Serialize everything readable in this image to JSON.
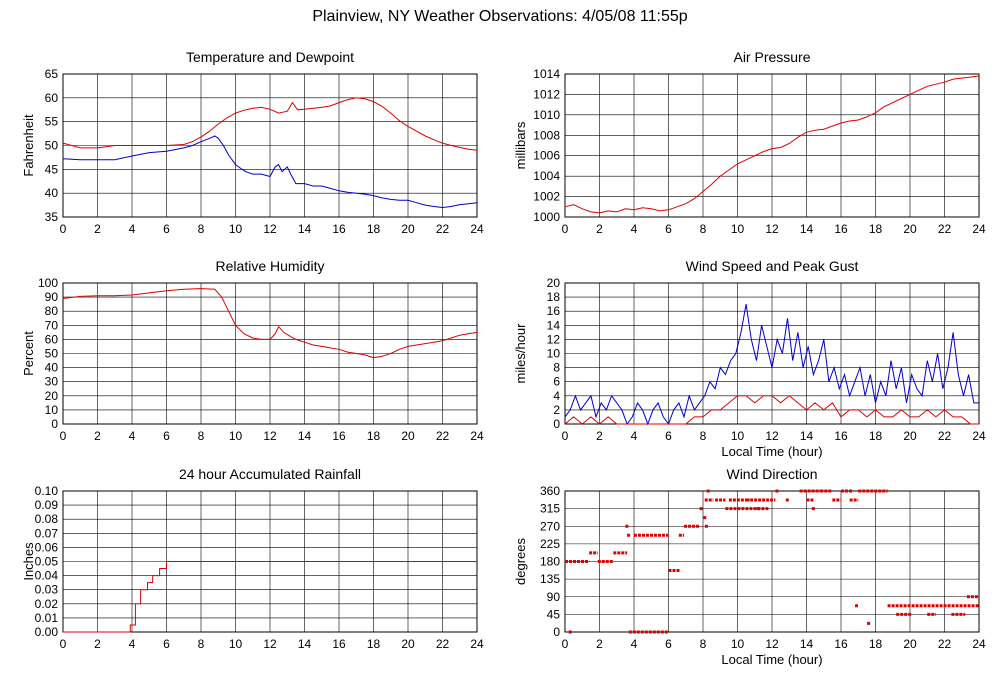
{
  "page": {
    "title": "Plainview, NY Weather Observations: 4/05/08 11:55p"
  },
  "colors": {
    "temperature": "#dd0000",
    "dewpoint": "#0000cc",
    "grid": "#000000"
  },
  "chart_data": [
    {
      "id": "temp",
      "type": "line",
      "title": "Temperature and Dewpoint",
      "xlabel": "",
      "ylabel": "Fahrenheit",
      "xlim": [
        0,
        24
      ],
      "ylim": [
        35,
        65
      ],
      "xticks": [
        0,
        2,
        4,
        6,
        8,
        10,
        12,
        14,
        16,
        18,
        20,
        22,
        24
      ],
      "yticks": [
        35,
        40,
        45,
        50,
        55,
        60,
        65
      ],
      "grid": true,
      "series": [
        {
          "color": "#dd0000",
          "x": [
            0,
            1,
            2,
            3,
            4,
            5,
            6,
            7,
            7.5,
            8,
            8.5,
            9,
            9.5,
            10,
            10.5,
            11,
            11.5,
            12,
            12.5,
            13,
            13.3,
            13.6,
            14,
            14.5,
            15,
            15.5,
            16,
            16.5,
            17,
            17.5,
            18,
            18.5,
            19,
            19.5,
            20,
            20.5,
            21,
            21.5,
            22,
            22.5,
            23,
            23.5,
            24
          ],
          "y": [
            50.5,
            49.5,
            49.5,
            50,
            50,
            50,
            50,
            50.2,
            50.8,
            51.8,
            53,
            54.5,
            55.8,
            56.8,
            57.4,
            57.8,
            58,
            57.6,
            56.8,
            57.2,
            59,
            57.5,
            57.6,
            57.8,
            58,
            58.3,
            59,
            59.6,
            60,
            59.8,
            59.2,
            58.2,
            56.8,
            55.2,
            54,
            53,
            52,
            51.2,
            50.5,
            50,
            49.6,
            49.2,
            49
          ]
        },
        {
          "color": "#0000cc",
          "x": [
            0,
            1,
            2,
            3,
            4,
            5,
            6,
            7,
            7.5,
            8,
            8.5,
            8.8,
            9,
            9.3,
            9.6,
            10,
            10.3,
            10.6,
            11,
            11.5,
            12,
            12.3,
            12.5,
            12.7,
            13,
            13.2,
            13.5,
            14,
            14.5,
            15,
            15.5,
            16,
            16.5,
            17,
            17.5,
            18,
            18.5,
            19,
            19.5,
            20,
            20.5,
            21,
            21.5,
            22,
            22.5,
            23,
            23.5,
            24
          ],
          "y": [
            47.2,
            47,
            47,
            47,
            47.8,
            48.5,
            48.8,
            49.5,
            50,
            50.8,
            51.5,
            52,
            51.5,
            50,
            48,
            46,
            45.2,
            44.5,
            44,
            44,
            43.5,
            45.5,
            46,
            44.5,
            45.5,
            44,
            42,
            42,
            41.5,
            41.5,
            41,
            40.5,
            40.2,
            40,
            39.8,
            39.5,
            39,
            38.7,
            38.5,
            38.5,
            38,
            37.5,
            37.2,
            37,
            37.2,
            37.6,
            37.8,
            38
          ]
        }
      ]
    },
    {
      "id": "pressure",
      "type": "line",
      "title": "Air Pressure",
      "xlabel": "",
      "ylabel": "millibars",
      "xlim": [
        0,
        24
      ],
      "ylim": [
        1000,
        1014
      ],
      "xticks": [
        0,
        2,
        4,
        6,
        8,
        10,
        12,
        14,
        16,
        18,
        20,
        22,
        24
      ],
      "yticks": [
        1000,
        1002,
        1004,
        1006,
        1008,
        1010,
        1012,
        1014
      ],
      "grid": true,
      "series": [
        {
          "color": "#dd0000",
          "x": [
            0,
            0.5,
            1,
            1.5,
            2,
            2.5,
            3,
            3.5,
            4,
            4.5,
            5,
            5.5,
            6,
            6.5,
            7,
            7.5,
            8,
            8.5,
            9,
            9.5,
            10,
            10.5,
            11,
            11.5,
            12,
            12.5,
            13,
            13.5,
            14,
            14.5,
            15,
            15.5,
            16,
            16.5,
            17,
            17.5,
            18,
            18.5,
            19,
            19.5,
            20,
            20.5,
            21,
            21.5,
            22,
            22.5,
            23,
            23.5,
            24
          ],
          "y": [
            1001,
            1001.2,
            1000.8,
            1000.5,
            1000.4,
            1000.6,
            1000.5,
            1000.8,
            1000.7,
            1000.9,
            1000.8,
            1000.6,
            1000.7,
            1001,
            1001.3,
            1001.8,
            1002.5,
            1003.2,
            1004,
            1004.6,
            1005.2,
            1005.6,
            1006,
            1006.4,
            1006.7,
            1006.8,
            1007.2,
            1007.8,
            1008.3,
            1008.5,
            1008.6,
            1008.9,
            1009.2,
            1009.4,
            1009.5,
            1009.8,
            1010.2,
            1010.8,
            1011.2,
            1011.6,
            1012,
            1012.4,
            1012.8,
            1013,
            1013.2,
            1013.5,
            1013.6,
            1013.7,
            1013.8
          ]
        }
      ]
    },
    {
      "id": "humidity",
      "type": "line",
      "title": "Relative Humidity",
      "xlabel": "",
      "ylabel": "Percent",
      "xlim": [
        0,
        24
      ],
      "ylim": [
        0,
        100
      ],
      "xticks": [
        0,
        2,
        4,
        6,
        8,
        10,
        12,
        14,
        16,
        18,
        20,
        22,
        24
      ],
      "yticks": [
        0,
        10,
        20,
        30,
        40,
        50,
        60,
        70,
        80,
        90,
        100
      ],
      "grid": true,
      "series": [
        {
          "color": "#dd0000",
          "x": [
            0,
            1,
            2,
            3,
            4,
            5,
            6,
            7,
            8,
            8.8,
            9.2,
            9.6,
            10,
            10.5,
            11,
            11.5,
            12,
            12.3,
            12.5,
            12.8,
            13.2,
            13.5,
            14,
            14.5,
            15,
            15.5,
            16,
            16.5,
            17,
            17.5,
            18,
            18.5,
            19,
            19.5,
            20,
            20.5,
            21,
            21.5,
            22,
            22.5,
            23,
            23.5,
            24
          ],
          "y": [
            89,
            90.5,
            91,
            91,
            91.5,
            93,
            94.5,
            95.5,
            96,
            95.5,
            90,
            80,
            70,
            64,
            61,
            60,
            60,
            64,
            69,
            65,
            62,
            60,
            58,
            56,
            55,
            54,
            53,
            51,
            50,
            49,
            47,
            48,
            50,
            53,
            55,
            56,
            57,
            58,
            59,
            61,
            63,
            64,
            65
          ]
        }
      ]
    },
    {
      "id": "wind",
      "type": "line",
      "title": "Wind Speed and Peak Gust",
      "xlabel": "Local Time (hour)",
      "ylabel": "miles/hour",
      "xlim": [
        0,
        24
      ],
      "ylim": [
        0,
        20
      ],
      "xticks": [
        0,
        2,
        4,
        6,
        8,
        10,
        12,
        14,
        16,
        18,
        20,
        22,
        24
      ],
      "yticks": [
        0,
        2,
        4,
        6,
        8,
        10,
        12,
        14,
        16,
        18,
        20
      ],
      "grid": true,
      "series": [
        {
          "color": "#0000cc",
          "x": [
            0,
            0.3,
            0.6,
            0.9,
            1.2,
            1.5,
            1.8,
            2.1,
            2.4,
            2.7,
            3,
            3.3,
            3.6,
            3.9,
            4.2,
            4.5,
            4.8,
            5.1,
            5.4,
            5.7,
            6,
            6.3,
            6.6,
            6.9,
            7.2,
            7.5,
            7.8,
            8.1,
            8.4,
            8.7,
            9,
            9.3,
            9.6,
            9.9,
            10.2,
            10.5,
            10.8,
            11.1,
            11.4,
            11.7,
            12,
            12.3,
            12.6,
            12.9,
            13.2,
            13.5,
            13.8,
            14.1,
            14.4,
            14.7,
            15,
            15.3,
            15.6,
            15.9,
            16.2,
            16.5,
            16.8,
            17.1,
            17.4,
            17.7,
            18,
            18.3,
            18.6,
            18.9,
            19.2,
            19.5,
            19.8,
            20.1,
            20.4,
            20.7,
            21,
            21.3,
            21.6,
            21.9,
            22.2,
            22.5,
            22.8,
            23.1,
            23.4,
            23.7,
            24
          ],
          "y": [
            1,
            2,
            4,
            2,
            3,
            4,
            1,
            3,
            2,
            4,
            3,
            2,
            0,
            1,
            3,
            2,
            0,
            2,
            3,
            1,
            0,
            2,
            3,
            1,
            4,
            2,
            3,
            4,
            6,
            5,
            8,
            7,
            9,
            10,
            13,
            17,
            12,
            9,
            14,
            11,
            8,
            12,
            10,
            15,
            9,
            13,
            8,
            11,
            7,
            9,
            12,
            6,
            8,
            5,
            7,
            4,
            6,
            8,
            4,
            7,
            3,
            6,
            4,
            9,
            5,
            8,
            3,
            7,
            5,
            4,
            9,
            6,
            10,
            5,
            8,
            13,
            7,
            4,
            7,
            3,
            3
          ]
        },
        {
          "color": "#dd0000",
          "x": [
            0,
            0.5,
            1,
            1.5,
            2,
            2.5,
            3,
            3.5,
            4,
            4.5,
            5,
            5.5,
            6,
            6.5,
            7,
            7.5,
            8,
            8.5,
            9,
            9.5,
            10,
            10.5,
            11,
            11.5,
            12,
            12.5,
            13,
            13.5,
            14,
            14.5,
            15,
            15.5,
            16,
            16.5,
            17,
            17.5,
            18,
            18.5,
            19,
            19.5,
            20,
            20.5,
            21,
            21.5,
            22,
            22.5,
            23,
            23.5,
            24
          ],
          "y": [
            0,
            1,
            0,
            1,
            0,
            1,
            0,
            0,
            0,
            0,
            0,
            0,
            0,
            0,
            0,
            1,
            1,
            2,
            2,
            3,
            4,
            4,
            3,
            4,
            4,
            3,
            4,
            3,
            2,
            3,
            2,
            3,
            1,
            2,
            2,
            1,
            2,
            1,
            1,
            2,
            1,
            1,
            2,
            1,
            2,
            1,
            1,
            0,
            0
          ]
        }
      ]
    },
    {
      "id": "rain",
      "type": "line",
      "title": "24 hour Accumulated Rainfall",
      "xlabel": "",
      "ylabel": "Inches",
      "xlim": [
        0,
        24
      ],
      "ylim": [
        0,
        0.1
      ],
      "xticks": [
        0,
        2,
        4,
        6,
        8,
        10,
        12,
        14,
        16,
        18,
        20,
        22,
        24
      ],
      "yticks": [
        0,
        0.01,
        0.02,
        0.03,
        0.04,
        0.05,
        0.06,
        0.07,
        0.08,
        0.09,
        0.1
      ],
      "ytick_labels": [
        "0.00",
        "0.01",
        "0.02",
        "0.03",
        "0.04",
        "0.05",
        "0.06",
        "0.07",
        "0.08",
        "0.09",
        "0.10"
      ],
      "grid": true,
      "series": [
        {
          "color": "#dd0000",
          "x": [
            0,
            3.9,
            3.9,
            4.2,
            4.2,
            4.5,
            4.5,
            4.9,
            4.9,
            5.2,
            5.2,
            5.6,
            5.6,
            6,
            6,
            24
          ],
          "y": [
            0,
            0,
            0.005,
            0.005,
            0.02,
            0.02,
            0.03,
            0.03,
            0.035,
            0.035,
            0.04,
            0.04,
            0.045,
            0.045,
            0.05,
            0.05
          ]
        }
      ]
    },
    {
      "id": "winddir",
      "type": "scatter",
      "title": "Wind Direction",
      "xlabel": "Local Time (hour)",
      "ylabel": "degrees",
      "xlim": [
        0,
        24
      ],
      "ylim": [
        0,
        360
      ],
      "xticks": [
        0,
        2,
        4,
        6,
        8,
        10,
        12,
        14,
        16,
        18,
        20,
        22,
        24
      ],
      "yticks": [
        0,
        45,
        90,
        135,
        180,
        225,
        270,
        315,
        360
      ],
      "grid": true,
      "segments": [
        [
          0,
          1.4,
          180
        ],
        [
          1.4,
          1.9,
          202
        ],
        [
          1.9,
          2.8,
          180
        ],
        [
          2.8,
          3.6,
          202
        ],
        [
          3.5,
          3.7,
          270
        ],
        [
          3.6,
          3.8,
          247
        ],
        [
          3.7,
          6.0,
          0
        ],
        [
          4.0,
          6.0,
          247
        ],
        [
          6.0,
          6.7,
          157
        ],
        [
          6.6,
          6.9,
          247
        ],
        [
          6.9,
          7.8,
          270
        ],
        [
          7.8,
          8.0,
          315
        ],
        [
          8.1,
          8.6,
          337
        ],
        [
          8.7,
          9.3,
          337
        ],
        [
          9.3,
          11.8,
          315
        ],
        [
          9.5,
          10.7,
          337
        ],
        [
          10.5,
          12.2,
          337
        ],
        [
          12.2,
          12.4,
          360
        ],
        [
          12.8,
          13.0,
          337
        ],
        [
          13.6,
          14.8,
          360
        ],
        [
          14.0,
          14.4,
          337
        ],
        [
          14.8,
          15.5,
          360
        ],
        [
          15.5,
          16.0,
          337
        ],
        [
          16.0,
          16.7,
          360
        ],
        [
          16.5,
          17.0,
          337
        ],
        [
          17.0,
          18.7,
          360
        ],
        [
          18.7,
          24.0,
          67
        ],
        [
          19.2,
          20.1,
          45
        ],
        [
          21.0,
          21.5,
          45
        ],
        [
          22.4,
          23.2,
          45
        ],
        [
          23.3,
          24.0,
          90
        ]
      ],
      "points": [
        [
          0.3,
          0
        ],
        [
          8.3,
          360
        ],
        [
          8.1,
          292
        ],
        [
          8.2,
          270
        ],
        [
          16.9,
          67
        ],
        [
          17.6,
          22
        ],
        [
          11.2,
          315
        ],
        [
          14.4,
          315
        ]
      ]
    }
  ]
}
